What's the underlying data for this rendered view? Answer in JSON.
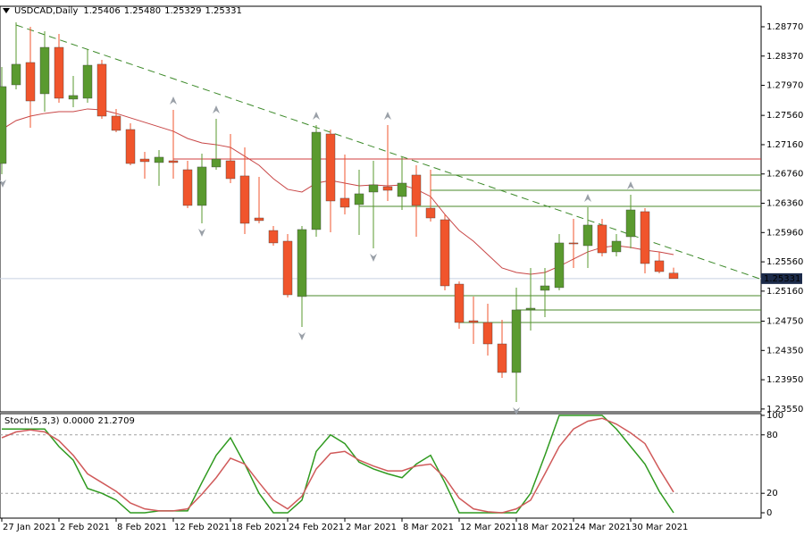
{
  "chart_data": [
    {
      "type": "candlestick",
      "title": "USDCAD,Daily",
      "title_values": [
        "1.25406",
        "1.25480",
        "1.25329",
        "1.25331"
      ],
      "categories": [
        "27 Jan 2021",
        null,
        null,
        null,
        "2 Feb 2021",
        null,
        null,
        null,
        "8 Feb 2021",
        null,
        null,
        null,
        "12 Feb 2021",
        null,
        null,
        null,
        "18 Feb 2021",
        null,
        null,
        null,
        "24 Feb 2021",
        null,
        null,
        null,
        "2 Mar 2021",
        null,
        null,
        null,
        "8 Mar 2021",
        null,
        null,
        null,
        "12 Mar 2021",
        null,
        null,
        null,
        "18 Mar 2021",
        null,
        null,
        null,
        "24 Mar 2021",
        null,
        null,
        null,
        "30 Mar 2021",
        null,
        null,
        null
      ],
      "open": [
        1.26903,
        1.27977,
        1.28282,
        1.27855,
        1.28489,
        1.27782,
        1.27794,
        1.28258,
        1.2755,
        1.27367,
        1.26964,
        1.26916,
        1.2694,
        1.26818,
        1.2633,
        1.26855,
        1.2694,
        1.26733,
        1.26159,
        1.25988,
        1.25842,
        1.25086,
        1.26001,
        1.27306,
        1.26428,
        1.26342,
        1.26513,
        1.26586,
        1.26452,
        1.26745,
        1.26293,
        1.26135,
        1.25256,
        1.24756,
        1.24732,
        1.24439,
        1.24049,
        1.24903,
        1.25171,
        1.25208,
        1.25818,
        1.25781,
        1.26062,
        1.25696,
        1.25903,
        1.26245,
        1.25574,
        1.25406
      ],
      "high": [
        1.28221,
        1.28831,
        1.2877,
        1.28709,
        1.28672,
        1.28099,
        1.28465,
        1.28319,
        1.27648,
        1.27452,
        1.27062,
        1.27086,
        1.27635,
        1.2694,
        1.27038,
        1.27513,
        1.27306,
        1.27123,
        1.2672,
        1.26049,
        1.2594,
        1.26049,
        1.27428,
        1.27367,
        1.27025,
        1.26818,
        1.2694,
        1.27428,
        1.27001,
        1.26879,
        1.26818,
        1.26208,
        1.25293,
        1.25086,
        1.24988,
        1.24768,
        1.25208,
        1.25476,
        1.25476,
        1.2594,
        1.26147,
        1.26306,
        1.26147,
        1.2594,
        1.26476,
        1.26293,
        1.25696,
        1.2548
      ],
      "low": [
        1.26757,
        1.27916,
        1.27391,
        1.27611,
        1.27733,
        1.27672,
        1.27733,
        1.27513,
        1.2733,
        1.26879,
        1.26696,
        1.26598,
        1.26696,
        1.26293,
        1.26086,
        1.26818,
        1.26635,
        1.2594,
        1.26086,
        1.25781,
        1.25073,
        1.24671,
        1.25903,
        1.25964,
        1.26208,
        1.25927,
        1.25744,
        1.26391,
        1.26269,
        1.25903,
        1.2611,
        1.25171,
        1.24646,
        1.24439,
        1.2428,
        1.23975,
        1.23646,
        1.24622,
        1.24805,
        1.25171,
        1.25476,
        1.25476,
        1.25635,
        1.25635,
        1.25744,
        1.25403,
        1.25403,
        1.25329
      ],
      "close": [
        1.27953,
        1.28258,
        1.27757,
        1.28489,
        1.27794,
        1.27831,
        1.28245,
        1.2755,
        1.27355,
        1.26903,
        1.26928,
        1.26989,
        1.26916,
        1.2633,
        1.26855,
        1.26964,
        1.26696,
        1.26086,
        1.26123,
        1.25818,
        1.2511,
        1.26001,
        1.2733,
        1.26391,
        1.26306,
        1.26489,
        1.26611,
        1.26537,
        1.26635,
        1.2633,
        1.26159,
        1.25232,
        1.24732,
        1.24732,
        1.24439,
        1.24049,
        1.24903,
        1.24927,
        1.25232,
        1.25818,
        1.25805,
        1.26062,
        1.25683,
        1.25842,
        1.26269,
        1.25537,
        1.25427,
        1.25331
      ],
      "up_color": "#5a9a2f",
      "down_color": "#f0552c",
      "ma": {
        "color": "#c84646",
        "values": [
          1.27367,
          1.27489,
          1.2755,
          1.27587,
          1.27611,
          1.27611,
          1.27648,
          1.27635,
          1.27587,
          1.27526,
          1.27465,
          1.27404,
          1.27343,
          1.27245,
          1.27184,
          1.2716,
          1.27123,
          1.27001,
          1.26879,
          1.26696,
          1.2655,
          1.26513,
          1.26635,
          1.26672,
          1.26635,
          1.26598,
          1.26611,
          1.26598,
          1.26611,
          1.2655,
          1.26452,
          1.26208,
          1.25988,
          1.25842,
          1.25659,
          1.25476,
          1.25415,
          1.25391,
          1.25415,
          1.255,
          1.25598,
          1.25696,
          1.25757,
          1.25781,
          1.25757,
          1.2572,
          1.25696,
          1.25659
        ]
      },
      "trendlines": [
        {
          "color": "#3d8a2a",
          "points": [
            [
              1,
              1.28794
            ],
            [
              53,
              1.25331
            ]
          ]
        }
      ],
      "levels": [
        {
          "value": 1.26964,
          "start": 12,
          "color": "#d03c3c"
        },
        {
          "value": 1.26745,
          "start": 30,
          "color": "#4a8a2a"
        },
        {
          "value": 1.26537,
          "start": 30,
          "color": "#4a8a2a"
        },
        {
          "value": 1.26318,
          "start": 25,
          "color": "#4a8a2a"
        },
        {
          "value": 1.25098,
          "start": 21,
          "color": "#4a8a2a"
        },
        {
          "value": 1.24903,
          "start": 36,
          "color": "#4a8a2a"
        },
        {
          "value": 1.24732,
          "start": 32,
          "color": "#4a8a2a"
        }
      ],
      "fractals_up": [
        12,
        15,
        22,
        27,
        41,
        44
      ],
      "fractals_down": [
        0,
        14,
        21,
        26,
        36
      ],
      "current_price": {
        "value": 1.25331,
        "label": "1.25331"
      },
      "ylim": [
        1.23524,
        1.29038
      ],
      "yticks": [
        {
          "value": 1.2877,
          "label": "1.28770"
        },
        {
          "value": 1.2837,
          "label": "1.28370"
        },
        {
          "value": 1.2797,
          "label": "1.27970"
        },
        {
          "value": 1.2756,
          "label": "1.27560"
        },
        {
          "value": 1.2716,
          "label": "1.27160"
        },
        {
          "value": 1.2676,
          "label": "1.26760"
        },
        {
          "value": 1.2636,
          "label": "1.26360"
        },
        {
          "value": 1.2596,
          "label": "1.25960"
        },
        {
          "value": 1.2556,
          "label": "1.25560"
        },
        {
          "value": 1.2516,
          "label": "1.25160"
        },
        {
          "value": 1.2475,
          "label": "1.24750"
        },
        {
          "value": 1.2435,
          "label": "1.24350"
        },
        {
          "value": 1.2395,
          "label": "1.23950"
        },
        {
          "value": 1.2355,
          "label": "1.23550"
        }
      ]
    },
    {
      "type": "line",
      "title": "Stoch(5,3,3)",
      "legend_values": [
        "0.0000",
        "21.2709"
      ],
      "series": [
        {
          "color": "#2f9a1f",
          "values": [
            86,
            86,
            86,
            86,
            68,
            54,
            25,
            20,
            13,
            0,
            0,
            2,
            2,
            2,
            31,
            59,
            77,
            50,
            20,
            0,
            0,
            13,
            63,
            80,
            71,
            52,
            45,
            40,
            36,
            50,
            59,
            31,
            0,
            0,
            0,
            0,
            0,
            20,
            59,
            100,
            100,
            100,
            100,
            86,
            68,
            50,
            22,
            0
          ]
        },
        {
          "color": "#d05a5a",
          "values": [
            77,
            83,
            85,
            83,
            74,
            59,
            40,
            31,
            22,
            10,
            4,
            2,
            2,
            4,
            19,
            36,
            56,
            50,
            31,
            13,
            4,
            17,
            45,
            61,
            63,
            54,
            48,
            43,
            43,
            48,
            50,
            36,
            15,
            4,
            1,
            0,
            4,
            13,
            40,
            68,
            86,
            94,
            97,
            91,
            82,
            71,
            45,
            21.2709
          ]
        }
      ],
      "levels": [
        20,
        80
      ],
      "ylim": [
        -5.5,
        101.8
      ],
      "yticks": [
        0,
        20,
        80,
        100
      ]
    }
  ]
}
